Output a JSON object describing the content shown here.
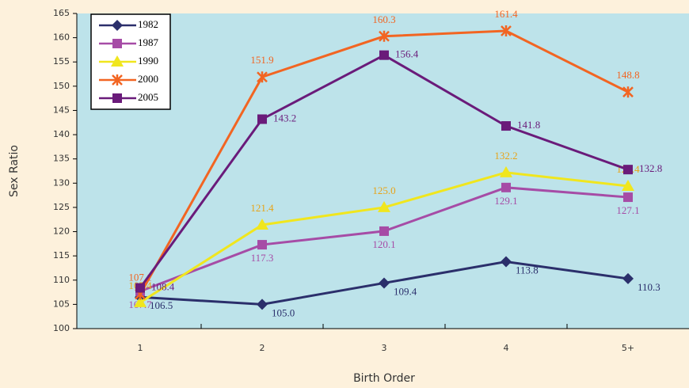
{
  "chart_data": {
    "type": "line",
    "x_label": "Birth Order",
    "y_label": "Sex Ratio",
    "categories": [
      "1",
      "2",
      "3",
      "4",
      "5+"
    ],
    "ylim": [
      100,
      165
    ],
    "yticks": [
      100,
      105,
      110,
      115,
      120,
      125,
      130,
      135,
      140,
      145,
      150,
      155,
      160,
      165
    ],
    "legend": "upper left",
    "series": [
      {
        "name": "1982",
        "color": "#2b2f6b",
        "label_color": "#2b2f6b",
        "marker": "diamond",
        "values": [
          106.5,
          105.0,
          109.4,
          113.8,
          110.3
        ],
        "value_labels": [
          "106.5",
          "105.0",
          "109.4",
          "113.8",
          "110.3"
        ]
      },
      {
        "name": "1987",
        "color": "#a64ca6",
        "label_color": "#a64ca6",
        "marker": "square",
        "values": [
          107.7,
          117.3,
          120.1,
          129.1,
          127.1
        ],
        "value_labels": [
          "107.7",
          "117.3",
          "120.1",
          "129.1",
          "127.1"
        ]
      },
      {
        "name": "1990",
        "color": "#f0e61e",
        "label_color": "#e8a317",
        "marker": "triangle",
        "values": [
          105.4,
          121.4,
          125.0,
          132.2,
          129.4
        ],
        "value_labels": [
          "105.4",
          "121.4",
          "125.0",
          "132.2",
          "129.4"
        ]
      },
      {
        "name": "2000",
        "color": "#f26522",
        "label_color": "#f26522",
        "marker": "x",
        "values": [
          107.1,
          151.9,
          160.3,
          161.4,
          148.8
        ],
        "value_labels": [
          "107.1",
          "151.9",
          "160.3",
          "161.4",
          "148.8"
        ]
      },
      {
        "name": "2005",
        "color": "#6a1b7a",
        "label_color": "#6a1b7a",
        "marker": "square",
        "values": [
          108.4,
          143.2,
          156.4,
          141.8,
          132.8
        ],
        "value_labels": [
          "108.4",
          "143.2",
          "156.4",
          "141.8",
          "132.8"
        ]
      }
    ]
  }
}
